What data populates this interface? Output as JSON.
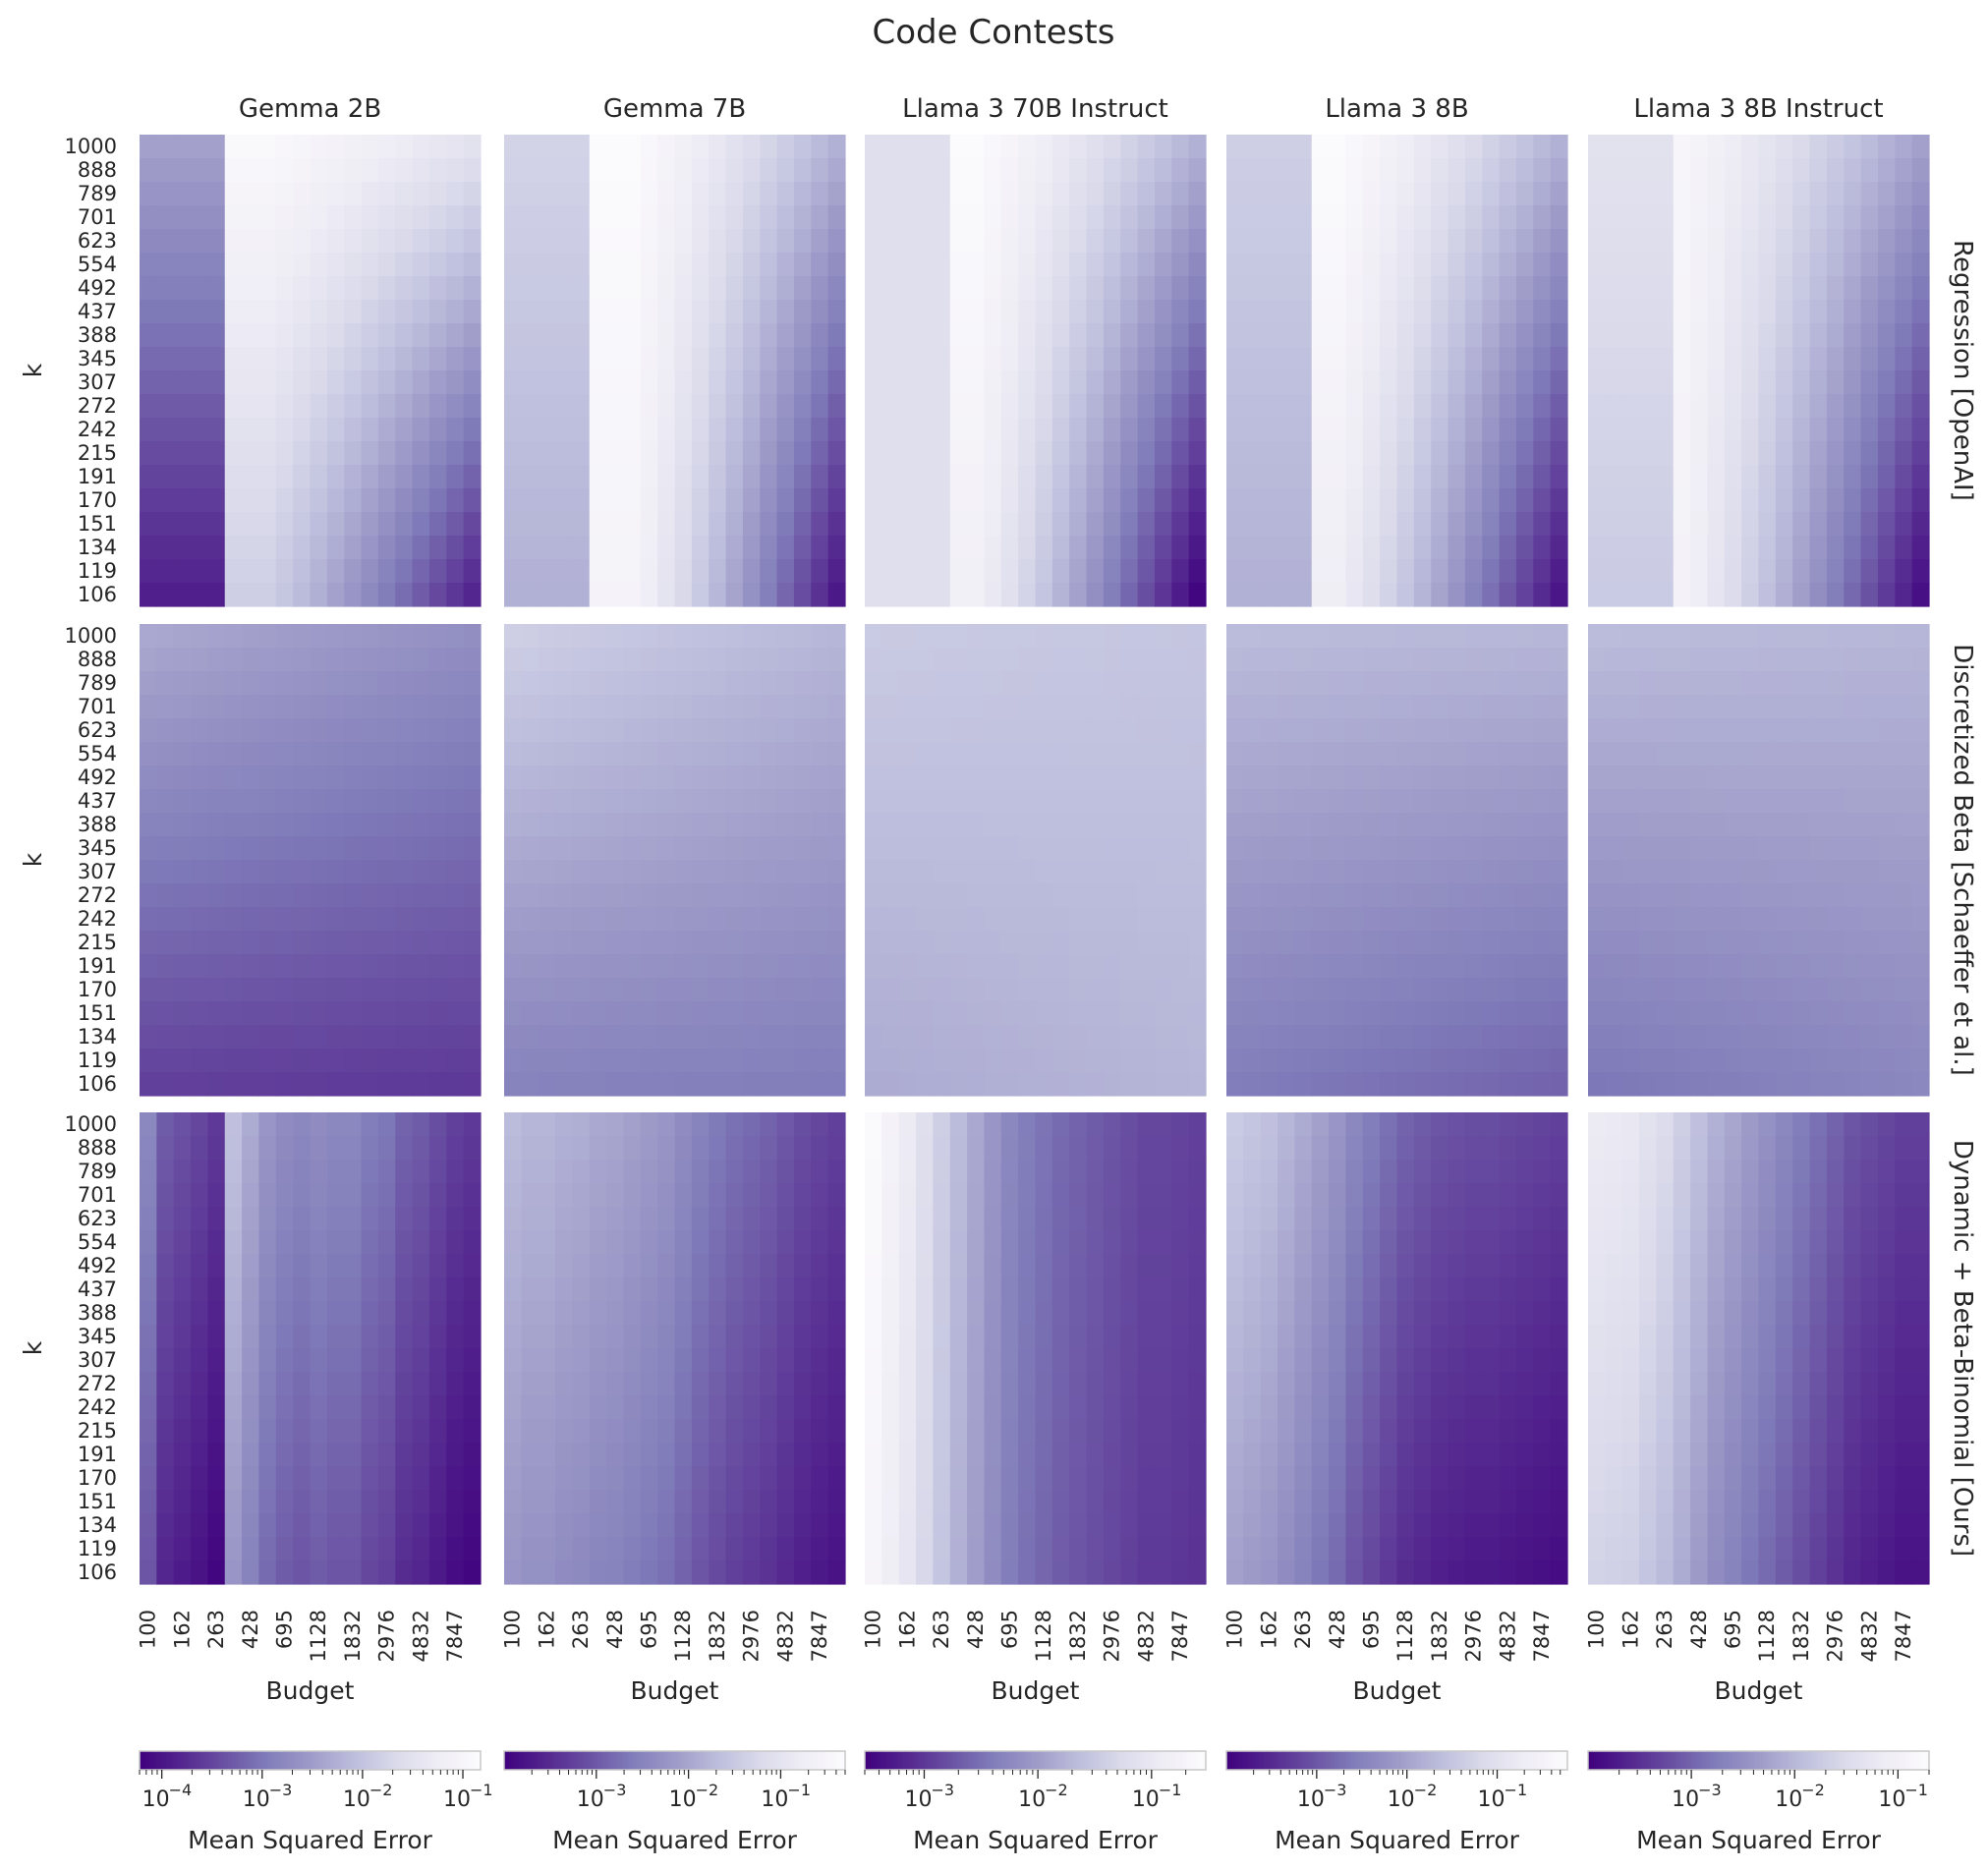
{
  "chart_data": {
    "type": "heatmap",
    "title": "Code Contests",
    "models": [
      "Gemma 2B",
      "Gemma 7B",
      "Llama 3 70B Instruct",
      "Llama 3 8B",
      "Llama 3 8B Instruct"
    ],
    "methods": [
      "Regression [OpenAI]",
      "Discretized Beta [Schaeffer et al.]",
      "Dynamic + Beta-Binomial [Ours]"
    ],
    "ylabel": "k",
    "xlabel": "Budget",
    "k_ticks": [
      "1000",
      "888",
      "789",
      "701",
      "623",
      "554",
      "492",
      "437",
      "388",
      "345",
      "307",
      "272",
      "242",
      "215",
      "191",
      "170",
      "151",
      "134",
      "119",
      "106"
    ],
    "budget_ticks": [
      "100",
      "162",
      "263",
      "428",
      "695",
      "1128",
      "1832",
      "2976",
      "4832",
      "7847"
    ],
    "colorbar": {
      "label": "Mean Squared Error",
      "scale": "log",
      "colormap": "Purples_r",
      "dark_color": "#3f007d",
      "light_color": "#fcfbfd",
      "per_model": [
        {
          "model": "Gemma 2B",
          "range": [
            6e-05,
            0.15
          ],
          "tick_values": [
            0.0001,
            0.001,
            0.01,
            0.1
          ],
          "tick_labels": [
            "10",
            "10",
            "10",
            "10"
          ],
          "tick_exponents": [
            "−4",
            "−3",
            "−2",
            "−1"
          ]
        },
        {
          "model": "Gemma 7B",
          "range": [
            0.0001,
            0.5
          ],
          "tick_values": [
            0.001,
            0.01,
            0.1
          ],
          "tick_labels": [
            "10",
            "10",
            "10"
          ],
          "tick_exponents": [
            "−3",
            "−2",
            "−1"
          ]
        },
        {
          "model": "Llama 3 70B Instruct",
          "range": [
            0.0003,
            0.3
          ],
          "tick_values": [
            0.001,
            0.01,
            0.1
          ],
          "tick_labels": [
            "10",
            "10",
            "10"
          ],
          "tick_exponents": [
            "−3",
            "−2",
            "−1"
          ]
        },
        {
          "model": "Llama 3 8B",
          "range": [
            0.0001,
            0.6
          ],
          "tick_values": [
            0.001,
            0.01,
            0.1
          ],
          "tick_labels": [
            "10",
            "10",
            "10"
          ],
          "tick_exponents": [
            "−3",
            "−2",
            "−1"
          ]
        },
        {
          "model": "Llama 3 8B Instruct",
          "range": [
            0.0001,
            0.2
          ],
          "tick_values": [
            0.001,
            0.01,
            0.1
          ],
          "tick_labels": [
            "10",
            "10",
            "10"
          ],
          "tick_exponents": [
            "−3",
            "−2",
            "−1"
          ]
        }
      ]
    },
    "grid": false,
    "panels_note": "Each panel is a 20 (k) x 20 (Budget) heatmap; every value is a normalized color position t in [0,1] where 0 = darkest purple (low MSE) and 1 = white (high MSE), as estimated from the image.",
    "panels": [
      {
        "row": 0,
        "col": 0,
        "model": "Gemma 2B",
        "method": "Regression [OpenAI]",
        "pattern": {
          "kind": "regression",
          "dark_cols": 5,
          "dark_top": 0.52,
          "dark_bot": 0.1,
          "min_col": 7,
          "light_top": 0.97,
          "light_bot": 0.7,
          "right_top": 0.8,
          "right_bot": 0.12
        }
      },
      {
        "row": 0,
        "col": 1,
        "model": "Gemma 7B",
        "method": "Regression [OpenAI]",
        "pattern": {
          "kind": "regression",
          "dark_cols": 5,
          "dark_top": 0.72,
          "dark_bot": 0.58,
          "min_col": 7,
          "light_top": 0.99,
          "light_bot": 0.93,
          "right_top": 0.58,
          "right_bot": 0.08
        }
      },
      {
        "row": 0,
        "col": 2,
        "model": "Llama 3 70B Instruct",
        "method": "Regression [OpenAI]",
        "pattern": {
          "kind": "regression",
          "dark_cols": 5,
          "dark_top": 0.78,
          "dark_bot": 0.78,
          "min_col": 6,
          "light_top": 0.99,
          "light_bot": 0.9,
          "right_top": 0.58,
          "right_bot": 0.02
        }
      },
      {
        "row": 0,
        "col": 3,
        "model": "Llama 3 8B",
        "method": "Regression [OpenAI]",
        "pattern": {
          "kind": "regression",
          "dark_cols": 5,
          "dark_top": 0.7,
          "dark_bot": 0.58,
          "min_col": 6,
          "light_top": 0.99,
          "light_bot": 0.88,
          "right_top": 0.58,
          "right_bot": 0.07
        }
      },
      {
        "row": 0,
        "col": 4,
        "model": "Llama 3 8B Instruct",
        "method": "Regression [OpenAI]",
        "pattern": {
          "kind": "regression",
          "dark_cols": 5,
          "dark_top": 0.8,
          "dark_bot": 0.68,
          "min_col": 5,
          "light_top": 0.95,
          "light_bot": 0.92,
          "right_top": 0.52,
          "right_bot": 0.05
        }
      },
      {
        "row": 1,
        "col": 0,
        "model": "Gemma 2B",
        "method": "Discretized Beta [Schaeffer et al.]",
        "pattern": {
          "kind": "smooth",
          "tl": 0.55,
          "tr": 0.45,
          "bl": 0.2,
          "br": 0.18
        }
      },
      {
        "row": 1,
        "col": 1,
        "model": "Gemma 7B",
        "method": "Discretized Beta [Schaeffer et al.]",
        "pattern": {
          "kind": "smooth",
          "tl": 0.7,
          "tr": 0.6,
          "bl": 0.4,
          "br": 0.38
        }
      },
      {
        "row": 1,
        "col": 2,
        "model": "Llama 3 70B Instruct",
        "method": "Discretized Beta [Schaeffer et al.]",
        "pattern": {
          "kind": "smooth",
          "tl": 0.68,
          "tr": 0.66,
          "bl": 0.56,
          "br": 0.6
        }
      },
      {
        "row": 1,
        "col": 3,
        "model": "Llama 3 8B",
        "method": "Discretized Beta [Schaeffer et al.]",
        "pattern": {
          "kind": "smooth",
          "tl": 0.62,
          "tr": 0.6,
          "bl": 0.38,
          "br": 0.3
        }
      },
      {
        "row": 1,
        "col": 4,
        "model": "Llama 3 8B Instruct",
        "method": "Discretized Beta [Schaeffer et al.]",
        "pattern": {
          "kind": "smooth",
          "tl": 0.62,
          "tr": 0.6,
          "bl": 0.36,
          "br": 0.42
        }
      },
      {
        "row": 2,
        "col": 0,
        "model": "Gemma 2B",
        "method": "Dynamic + Beta-Binomial [Ours]",
        "pattern": {
          "kind": "columns",
          "col_values": [
            0.42,
            0.28,
            0.25,
            0.22,
            0.18,
            0.64,
            0.56,
            0.48,
            0.44,
            0.42,
            0.44,
            0.42,
            0.42,
            0.38,
            0.36,
            0.3,
            0.28,
            0.24,
            0.2,
            0.18
          ],
          "bottom_drop": 0.16
        }
      },
      {
        "row": 2,
        "col": 1,
        "model": "Gemma 7B",
        "method": "Dynamic + Beta-Binomial [Ours]",
        "pattern": {
          "kind": "columns",
          "col_values": [
            0.62,
            0.6,
            0.6,
            0.58,
            0.57,
            0.55,
            0.54,
            0.52,
            0.5,
            0.48,
            0.44,
            0.4,
            0.37,
            0.34,
            0.32,
            0.3,
            0.27,
            0.24,
            0.22,
            0.2
          ],
          "bottom_drop": 0.14
        }
      },
      {
        "row": 2,
        "col": 2,
        "model": "Llama 3 70B Instruct",
        "method": "Dynamic + Beta-Binomial [Ours]",
        "pattern": {
          "kind": "columns",
          "col_values": [
            0.98,
            0.92,
            0.86,
            0.78,
            0.7,
            0.62,
            0.55,
            0.48,
            0.42,
            0.38,
            0.35,
            0.32,
            0.3,
            0.28,
            0.26,
            0.24,
            0.22,
            0.22,
            0.21,
            0.2
          ],
          "bottom_drop": 0.04
        }
      },
      {
        "row": 2,
        "col": 3,
        "model": "Llama 3 8B",
        "method": "Dynamic + Beta-Binomial [Ours]",
        "pattern": {
          "kind": "columns",
          "col_values": [
            0.68,
            0.66,
            0.64,
            0.6,
            0.56,
            0.52,
            0.48,
            0.42,
            0.38,
            0.34,
            0.3,
            0.28,
            0.26,
            0.25,
            0.24,
            0.24,
            0.23,
            0.22,
            0.21,
            0.2
          ],
          "bottom_drop": 0.16
        }
      },
      {
        "row": 2,
        "col": 4,
        "model": "Llama 3 8B Instruct",
        "method": "Dynamic + Beta-Binomial [Ours]",
        "pattern": {
          "kind": "columns",
          "col_values": [
            0.86,
            0.85,
            0.84,
            0.8,
            0.76,
            0.7,
            0.64,
            0.58,
            0.54,
            0.5,
            0.46,
            0.42,
            0.38,
            0.34,
            0.3,
            0.26,
            0.24,
            0.22,
            0.2,
            0.2
          ],
          "bottom_drop": 0.14
        }
      }
    ]
  }
}
